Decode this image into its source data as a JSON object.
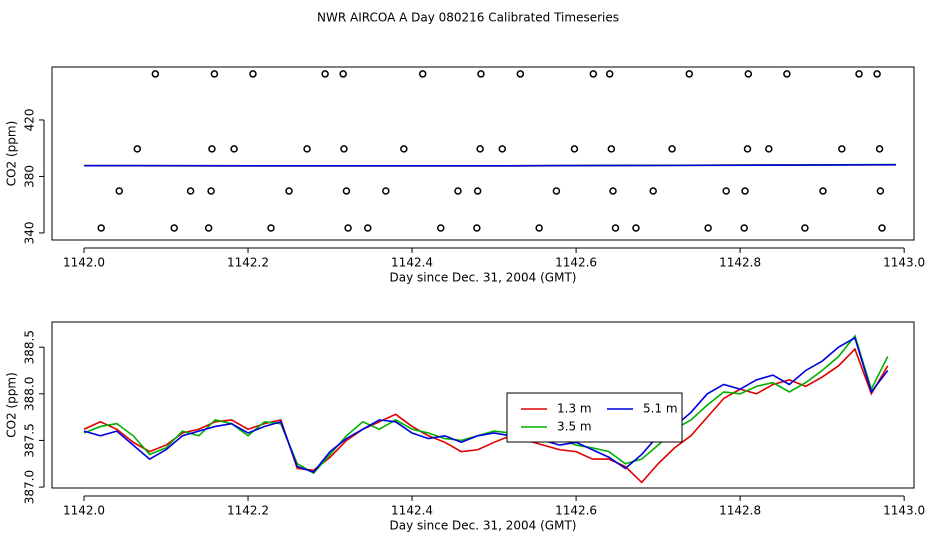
{
  "chart_data": [
    {
      "type": "scatter",
      "title": "NWR AIRCOA A  Day 080216  Calibrated Timeseries",
      "x_label": "Day since Dec. 31, 2004 (GMT)",
      "y_label": "CO2 (ppm)",
      "xlim": [
        1141.961,
        1143.012
      ],
      "ylim": [
        335,
        457.5
      ],
      "xticks": [
        {
          "value": 1142,
          "label": "1142.0"
        },
        1142.2,
        1142.4,
        1142.6,
        1142.8,
        {
          "value": 1143,
          "label": "1143.0"
        }
      ],
      "yticks": [
        340,
        380,
        420
      ],
      "series": [
        {
          "type": "scatter",
          "color": "#000000",
          "x": [
            1142.087,
            1142.159,
            1142.206,
            1142.294,
            1142.316,
            1142.413,
            1142.484,
            1142.532,
            1142.621,
            1142.641,
            1142.738,
            1142.81,
            1142.857,
            1142.945,
            1142.967,
            1142.065,
            1142.156,
            1142.183,
            1142.272,
            1142.317,
            1142.39,
            1142.483,
            1142.51,
            1142.598,
            1142.643,
            1142.717,
            1142.809,
            1142.835,
            1142.924,
            1142.97,
            1142.043,
            1142.13,
            1142.155,
            1142.25,
            1142.32,
            1142.368,
            1142.456,
            1142.48,
            1142.576,
            1142.645,
            1142.694,
            1142.783,
            1142.806,
            1142.901,
            1142.971,
            1142.021,
            1142.11,
            1142.152,
            1142.228,
            1142.322,
            1142.346,
            1142.435,
            1142.479,
            1142.555,
            1142.648,
            1142.673,
            1142.761,
            1142.805,
            1142.879,
            1142.973
          ],
          "values": [
            452.6,
            452.6,
            452.6,
            452.6,
            452.6,
            452.6,
            452.6,
            452.6,
            452.6,
            452.6,
            452.6,
            452.6,
            452.6,
            452.6,
            452.6,
            399.5,
            399.5,
            399.5,
            399.5,
            399.5,
            399.5,
            399.5,
            399.5,
            399.5,
            399.5,
            399.5,
            399.5,
            399.5,
            399.5,
            399.5,
            369.7,
            369.7,
            369.7,
            369.7,
            369.7,
            369.7,
            369.7,
            369.7,
            369.7,
            369.7,
            369.7,
            369.7,
            369.7,
            369.7,
            369.7,
            343.5,
            343.5,
            343.5,
            343.5,
            343.5,
            343.5,
            343.5,
            343.5,
            343.5,
            343.5,
            343.5,
            343.5,
            343.5,
            343.5,
            343.5
          ]
        },
        {
          "type": "line",
          "color": "#e00000",
          "x": [
            1142.0,
            1142.5,
            1142.99
          ],
          "values": [
            387.6,
            387.5,
            388.3
          ]
        },
        {
          "type": "line",
          "color": "#00b000",
          "x": [
            1142.0,
            1142.5,
            1142.99
          ],
          "values": [
            387.6,
            387.5,
            388.4
          ]
        },
        {
          "type": "line",
          "color": "#0000e0",
          "x": [
            1142.0,
            1142.5,
            1142.99
          ],
          "values": [
            387.6,
            387.5,
            388.25
          ]
        }
      ]
    },
    {
      "type": "line",
      "x_label": "Day since Dec. 31, 2004 (GMT)",
      "y_label": "CO2 (ppm)",
      "xlim": [
        1141.961,
        1143.012
      ],
      "ylim": [
        386.99,
        388.77
      ],
      "xticks": [
        {
          "value": 1142,
          "label": "1142.0"
        },
        1142.2,
        1142.4,
        1142.6,
        1142.8,
        {
          "value": 1143,
          "label": "1143.0"
        }
      ],
      "yticks": [
        {
          "value": 387,
          "label": "387.0"
        },
        387.5,
        {
          "value": 388,
          "label": "388.0"
        },
        388.5
      ],
      "legend": "center-right",
      "x": [
        1142.0,
        1142.02,
        1142.04,
        1142.06,
        1142.08,
        1142.1,
        1142.12,
        1142.14,
        1142.16,
        1142.18,
        1142.2,
        1142.22,
        1142.24,
        1142.26,
        1142.28,
        1142.3,
        1142.32,
        1142.34,
        1142.36,
        1142.38,
        1142.4,
        1142.42,
        1142.44,
        1142.46,
        1142.48,
        1142.5,
        1142.52,
        1142.54,
        1142.56,
        1142.58,
        1142.6,
        1142.62,
        1142.64,
        1142.66,
        1142.68,
        1142.7,
        1142.72,
        1142.74,
        1142.76,
        1142.78,
        1142.8,
        1142.82,
        1142.84,
        1142.86,
        1142.88,
        1142.9,
        1142.92,
        1142.94,
        1142.96,
        1142.98
      ],
      "series": [
        {
          "name": "1.3 m",
          "color": "#e00000",
          "values": [
            387.62,
            387.7,
            387.62,
            387.48,
            387.38,
            387.45,
            387.58,
            387.62,
            387.7,
            387.72,
            387.62,
            387.68,
            387.72,
            387.2,
            387.18,
            387.32,
            387.5,
            387.62,
            387.7,
            387.78,
            387.65,
            387.55,
            387.48,
            387.38,
            387.4,
            387.48,
            387.55,
            387.5,
            387.45,
            387.4,
            387.38,
            387.3,
            387.3,
            387.22,
            387.05,
            387.25,
            387.42,
            387.55,
            387.75,
            387.95,
            388.05,
            388.0,
            388.1,
            388.15,
            388.08,
            388.18,
            388.3,
            388.48,
            388.0,
            388.3
          ]
        },
        {
          "name": "3.5 m",
          "color": "#00b000",
          "values": [
            387.58,
            387.65,
            387.68,
            387.55,
            387.35,
            387.42,
            387.6,
            387.55,
            387.72,
            387.68,
            387.55,
            387.7,
            387.68,
            387.25,
            387.15,
            387.35,
            387.55,
            387.7,
            387.62,
            387.72,
            387.62,
            387.58,
            387.52,
            387.5,
            387.55,
            387.6,
            387.58,
            387.62,
            387.55,
            387.52,
            387.45,
            387.42,
            387.38,
            387.25,
            387.3,
            387.45,
            387.62,
            387.72,
            387.88,
            388.02,
            388.0,
            388.08,
            388.12,
            388.02,
            388.12,
            388.25,
            388.4,
            388.62,
            388.05,
            388.4
          ]
        },
        {
          "name": "5.1 m",
          "color": "#0000e0",
          "values": [
            387.6,
            387.55,
            387.6,
            387.45,
            387.3,
            387.4,
            387.55,
            387.6,
            387.65,
            387.68,
            387.58,
            387.65,
            387.7,
            387.22,
            387.16,
            387.38,
            387.52,
            387.62,
            387.72,
            387.7,
            387.58,
            387.52,
            387.55,
            387.48,
            387.55,
            387.58,
            387.55,
            387.6,
            387.5,
            387.45,
            387.48,
            387.4,
            387.32,
            387.2,
            387.35,
            387.55,
            387.65,
            387.8,
            388.0,
            388.1,
            388.05,
            388.15,
            388.2,
            388.1,
            388.25,
            388.35,
            388.5,
            388.6,
            388.02,
            388.25
          ]
        }
      ]
    }
  ]
}
